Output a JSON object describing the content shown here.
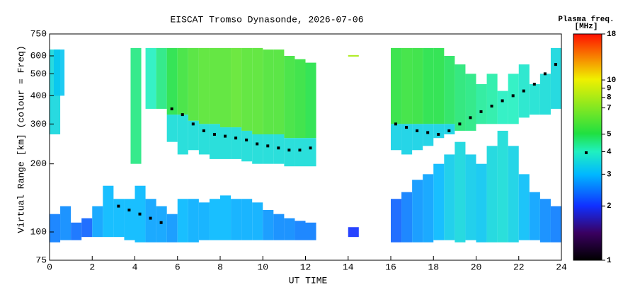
{
  "chart_data": {
    "type": "rti",
    "title": "EISCAT Tromso Dynasonde, 2026-07-06",
    "x_label": "UT TIME",
    "y_label": "Virtual Range [km] (colour = Freq)",
    "colorbar_title": "Plasma freq.",
    "colorbar_unit": "[MHz]",
    "xlim": [
      0,
      24
    ],
    "xticks": [
      0,
      2,
      4,
      6,
      8,
      10,
      12,
      14,
      16,
      18,
      20,
      22,
      24
    ],
    "ylim": [
      75,
      750
    ],
    "yticks": [
      75,
      100,
      200,
      300,
      400,
      500,
      600,
      750
    ],
    "y_log": true,
    "clim": [
      1,
      18
    ],
    "cticks": [
      1,
      2,
      3,
      4,
      5,
      7,
      8,
      9,
      10,
      18
    ],
    "c_log": true,
    "trace_color": "#000000",
    "echoes": {
      "x": [
        0,
        0.5,
        1,
        1.5,
        2,
        2.5,
        3,
        3.5,
        4,
        4.5,
        5,
        5.5,
        6,
        6.5,
        7,
        7.5,
        8,
        8.5,
        9,
        9.5,
        10,
        10.5,
        11,
        11.5,
        12,
        0,
        0.2,
        3.8,
        4.5,
        5,
        5.5,
        6,
        6.5,
        7,
        7.5,
        8,
        8.5,
        9,
        9.5,
        10,
        10.5,
        11,
        11.5,
        12,
        5.5,
        6,
        6.5,
        7,
        7.5,
        8,
        8.5,
        9,
        9.5,
        10,
        10.5,
        11,
        11.5,
        12,
        14,
        14,
        16,
        16.5,
        17,
        17.5,
        18,
        18.5,
        19,
        19.5,
        20,
        20.5,
        21,
        21.5,
        22,
        22.5,
        23,
        23.5,
        16,
        16.5,
        17,
        17.5,
        18,
        18.5,
        19,
        19.5,
        20,
        20.5,
        21,
        21.5,
        22,
        22.5,
        23,
        23.5,
        16,
        16.5,
        17,
        17.5,
        18,
        18.5
      ],
      "y_bottom": [
        90,
        92,
        92,
        95,
        95,
        95,
        95,
        92,
        90,
        90,
        90,
        90,
        90,
        90,
        92,
        92,
        92,
        92,
        92,
        92,
        92,
        92,
        92,
        92,
        92,
        270,
        400,
        200,
        350,
        350,
        330,
        330,
        310,
        300,
        300,
        290,
        290,
        280,
        270,
        270,
        270,
        260,
        260,
        260,
        250,
        220,
        230,
        220,
        210,
        210,
        210,
        205,
        200,
        200,
        200,
        195,
        195,
        195,
        95,
        595,
        90,
        90,
        90,
        90,
        92,
        92,
        90,
        92,
        90,
        90,
        90,
        90,
        92,
        92,
        90,
        90,
        300,
        300,
        300,
        300,
        300,
        300,
        280,
        280,
        300,
        300,
        300,
        300,
        320,
        330,
        330,
        350,
        230,
        220,
        230,
        240,
        260,
        270
      ],
      "y_top": [
        120,
        130,
        110,
        115,
        130,
        160,
        140,
        140,
        160,
        140,
        130,
        120,
        140,
        140,
        135,
        140,
        145,
        140,
        140,
        135,
        125,
        120,
        115,
        112,
        110,
        640,
        640,
        650,
        650,
        650,
        650,
        650,
        650,
        650,
        650,
        650,
        650,
        650,
        650,
        640,
        640,
        600,
        580,
        560,
        330,
        330,
        310,
        300,
        300,
        290,
        290,
        280,
        270,
        270,
        270,
        260,
        260,
        260,
        105,
        605,
        140,
        150,
        170,
        180,
        200,
        220,
        250,
        220,
        200,
        240,
        280,
        240,
        180,
        150,
        140,
        130,
        650,
        650,
        650,
        650,
        650,
        600,
        550,
        500,
        450,
        500,
        420,
        500,
        550,
        450,
        500,
        650,
        300,
        300,
        300,
        300,
        300,
        300
      ],
      "freq": [
        2.5,
        2.6,
        2.4,
        2.3,
        2.8,
        3.0,
        3.0,
        3.0,
        3.0,
        2.8,
        2.8,
        2.7,
        3.0,
        2.9,
        2.9,
        3.0,
        3.0,
        2.9,
        2.9,
        2.9,
        2.7,
        2.6,
        2.6,
        2.5,
        2.5,
        3.5,
        3.2,
        4.5,
        4.0,
        4.5,
        5.0,
        5.5,
        5.8,
        6.0,
        6.0,
        6.0,
        6.2,
        6.0,
        6.0,
        5.8,
        5.8,
        5.5,
        5.3,
        5.0,
        3.6,
        3.6,
        3.6,
        3.6,
        3.6,
        3.6,
        3.6,
        3.6,
        3.6,
        3.6,
        3.6,
        3.6,
        3.6,
        3.6,
        2.0,
        8,
        2.3,
        2.5,
        2.7,
        2.8,
        3.0,
        3.3,
        3.5,
        3.3,
        3.2,
        3.5,
        3.6,
        3.4,
        3.1,
        2.8,
        2.6,
        2.5,
        5.2,
        5.4,
        5.3,
        5.0,
        5.0,
        4.8,
        4.6,
        4.5,
        4.3,
        4.2,
        4.0,
        4.0,
        3.8,
        3.7,
        3.6,
        3.5,
        3.4,
        3.4,
        3.4,
        3.4,
        3.4,
        3.4
      ]
    },
    "trace": {
      "x": [
        3,
        3.5,
        4,
        4.5,
        5,
        5.5,
        6,
        6.5,
        7,
        7.5,
        8,
        8.5,
        9,
        9.5,
        10,
        10.5,
        11,
        11.5,
        12,
        16,
        16.5,
        17,
        17.5,
        18,
        18.5,
        19,
        19.5,
        20,
        20.5,
        21,
        21.5,
        22,
        22.5,
        23,
        23.5
      ],
      "y": [
        130,
        125,
        120,
        115,
        110,
        350,
        330,
        300,
        280,
        270,
        265,
        260,
        255,
        245,
        240,
        235,
        230,
        230,
        235,
        300,
        290,
        280,
        275,
        270,
        280,
        300,
        320,
        340,
        360,
        380,
        400,
        420,
        450,
        500,
        550
      ]
    }
  }
}
